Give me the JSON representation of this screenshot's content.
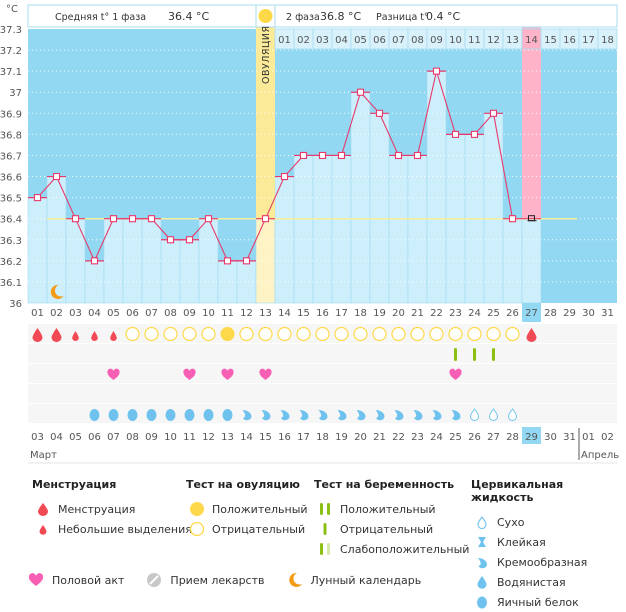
{
  "header": {
    "phase1_label": "Средняя t° 1 фаза",
    "phase1_value": "36.4 °C",
    "phase2_label": "2 фаза",
    "phase2_value": "36.8 °C",
    "diff_label": "Разница t°",
    "diff_value": "0.4 °C",
    "unit_label": "°C",
    "ovulation_label": "ОВУЛЯЦИЯ"
  },
  "colors": {
    "sky": "#92d8f2",
    "bar": "#cdeefb",
    "ovulation": "#fbeb98",
    "pink": "#ffb3c8",
    "line": "#e8396a",
    "coverline": "#f8ef9a",
    "red_day": "#e8396a",
    "menses": "#f24a55",
    "ovu_yellow": "#fdd94a",
    "preg_green": "#8cbf13",
    "preg_light": "#d6e9a8",
    "heart": "#f75fb5",
    "fluid": "#6fc2ee",
    "moon": "#f49a15",
    "pill": "#c8c8c8"
  },
  "chart_data": {
    "type": "line",
    "title": "",
    "ylabel": "°C",
    "ylim": [
      36.0,
      37.3
    ],
    "yticks": [
      "36",
      "36.1",
      "36.2",
      "36.3",
      "36.4",
      "36.5",
      "36.6",
      "36.7",
      "36.8",
      "36.9",
      "37",
      "37.1",
      "37.2",
      "37.3"
    ],
    "cycle_days": [
      "01",
      "02",
      "03",
      "04",
      "05",
      "06",
      "07",
      "08",
      "09",
      "10",
      "11",
      "12",
      "13",
      "14",
      "15",
      "16",
      "17",
      "18",
      "19",
      "20",
      "21",
      "22",
      "23",
      "24",
      "25",
      "26",
      "27",
      "28",
      "29",
      "30",
      "31"
    ],
    "phase2_days": [
      "01",
      "02",
      "03",
      "04",
      "05",
      "06",
      "07",
      "08",
      "09",
      "10",
      "11",
      "12",
      "13",
      "14",
      "15",
      "16",
      "17",
      "18"
    ],
    "temperatures": [
      36.5,
      36.6,
      36.4,
      36.2,
      36.4,
      36.4,
      36.4,
      36.3,
      36.3,
      36.4,
      36.2,
      36.2,
      36.4,
      36.6,
      36.7,
      36.7,
      36.7,
      37.0,
      36.9,
      36.7,
      36.7,
      37.1,
      36.8,
      36.8,
      36.9,
      36.4,
      36.4
    ],
    "coverline": 36.4,
    "ovulation_day": 13,
    "highlight_day": 27,
    "current_day": 27,
    "moon_day": 2,
    "menstruation": [
      {
        "day": 1,
        "type": "full"
      },
      {
        "day": 2,
        "type": "full"
      },
      {
        "day": 3,
        "type": "light"
      },
      {
        "day": 4,
        "type": "light"
      },
      {
        "day": 5,
        "type": "light"
      },
      {
        "day": 27,
        "type": "full"
      }
    ],
    "ovulation_tests": {
      "negative": [
        6,
        7,
        8,
        9,
        10,
        12,
        13,
        14,
        15,
        16,
        17,
        18,
        19,
        20,
        21,
        22,
        23,
        24,
        25,
        26
      ],
      "positive": [
        11
      ]
    },
    "pregnancy_tests": {
      "negative": [
        23,
        24,
        25
      ]
    },
    "intercourse": [
      5,
      9,
      11,
      13,
      23
    ],
    "cervical_fluid": [
      {
        "day": 4,
        "type": "egg-white"
      },
      {
        "day": 5,
        "type": "egg-white"
      },
      {
        "day": 6,
        "type": "egg-white"
      },
      {
        "day": 7,
        "type": "egg-white"
      },
      {
        "day": 8,
        "type": "egg-white"
      },
      {
        "day": 9,
        "type": "egg-white"
      },
      {
        "day": 10,
        "type": "egg-white"
      },
      {
        "day": 11,
        "type": "egg-white"
      },
      {
        "day": 12,
        "type": "creamy"
      },
      {
        "day": 13,
        "type": "creamy"
      },
      {
        "day": 14,
        "type": "creamy"
      },
      {
        "day": 15,
        "type": "creamy"
      },
      {
        "day": 16,
        "type": "creamy"
      },
      {
        "day": 17,
        "type": "creamy"
      },
      {
        "day": 18,
        "type": "creamy"
      },
      {
        "day": 19,
        "type": "creamy"
      },
      {
        "day": 20,
        "type": "creamy"
      },
      {
        "day": 21,
        "type": "creamy"
      },
      {
        "day": 22,
        "type": "creamy"
      },
      {
        "day": 23,
        "type": "creamy"
      },
      {
        "day": 24,
        "type": "dry"
      },
      {
        "day": 25,
        "type": "dry"
      },
      {
        "day": 26,
        "type": "dry"
      }
    ],
    "dates": [
      "03",
      "04",
      "05",
      "06",
      "07",
      "08",
      "09",
      "10",
      "11",
      "12",
      "13",
      "14",
      "15",
      "16",
      "17",
      "18",
      "19",
      "20",
      "21",
      "22",
      "23",
      "24",
      "25",
      "26",
      "27",
      "28",
      "29",
      "30",
      "31",
      "01",
      "02"
    ],
    "red_dates": [
      0,
      6,
      7,
      13,
      14,
      20,
      21,
      27,
      28
    ],
    "current_date_index": 26,
    "month_start": "Март",
    "month_end": "Апрель"
  },
  "legend": {
    "menstruation": {
      "title": "Менструация",
      "items": [
        "Менструация",
        "Небольшие выделения"
      ]
    },
    "ovulation_test": {
      "title": "Тест на овуляцию",
      "items": [
        "Положительный",
        "Отрицательный"
      ]
    },
    "pregnancy_test": {
      "title": "Тест на беременность",
      "items": [
        "Положительный",
        "Отрицательный",
        "Слабоположительный"
      ]
    },
    "cervical": {
      "title": "Цервикальная жидкость",
      "items": [
        "Сухо",
        "Клейкая",
        "Кремообразная",
        "Водянистая",
        "Яичный белок"
      ]
    },
    "bottom": [
      "Половой акт",
      "Прием лекарств",
      "Лунный календарь"
    ]
  }
}
